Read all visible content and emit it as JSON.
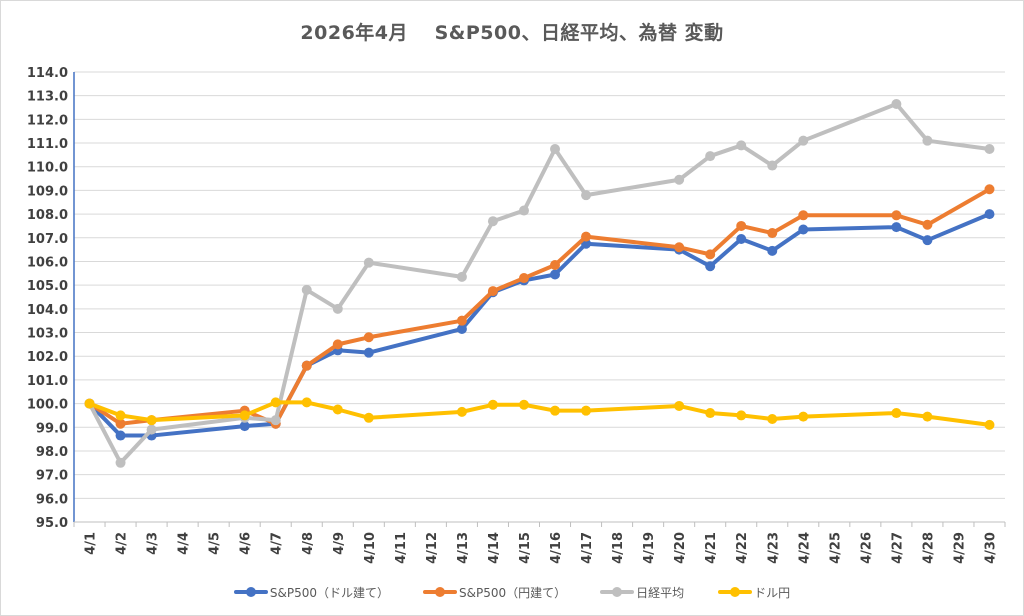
{
  "chart_data": {
    "type": "line",
    "title": "2026年4月　 S&P500、日経平均、為替 変動",
    "categories": [
      "4/1",
      "4/2",
      "4/3",
      "4/4",
      "4/5",
      "4/6",
      "4/7",
      "4/8",
      "4/9",
      "4/10",
      "4/11",
      "4/12",
      "4/13",
      "4/14",
      "4/15",
      "4/16",
      "4/17",
      "4/18",
      "4/19",
      "4/20",
      "4/21",
      "4/22",
      "4/23",
      "4/24",
      "4/25",
      "4/26",
      "4/27",
      "4/28",
      "4/29",
      "4/30"
    ],
    "ylim": [
      95.0,
      114.0
    ],
    "y_ticks": [
      "95.0",
      "96.0",
      "97.0",
      "98.0",
      "99.0",
      "100.0",
      "101.0",
      "102.0",
      "103.0",
      "104.0",
      "105.0",
      "106.0",
      "107.0",
      "108.0",
      "109.0",
      "110.0",
      "111.0",
      "112.0",
      "113.0",
      "114.0"
    ],
    "grid": "horizontal",
    "legend_position": "bottom",
    "series": [
      {
        "name": "S&P500（ドル建て）",
        "color": "#4472c4",
        "values": [
          100.0,
          98.65,
          98.65,
          null,
          null,
          99.05,
          99.15,
          101.6,
          102.25,
          102.15,
          null,
          null,
          103.15,
          104.7,
          105.2,
          105.45,
          106.75,
          null,
          null,
          106.5,
          105.8,
          106.95,
          106.45,
          107.35,
          null,
          null,
          107.45,
          106.9,
          null,
          108.0
        ]
      },
      {
        "name": "S&P500（円建て）",
        "color": "#ed7d31",
        "values": [
          100.0,
          99.15,
          99.3,
          null,
          null,
          99.7,
          99.15,
          101.6,
          102.5,
          102.8,
          null,
          null,
          103.5,
          104.75,
          105.3,
          105.85,
          107.05,
          null,
          null,
          106.6,
          106.3,
          107.5,
          107.2,
          107.95,
          null,
          null,
          107.95,
          107.55,
          null,
          109.05
        ]
      },
      {
        "name": "日経平均",
        "color": "#bfbfbf",
        "values": [
          100.0,
          97.5,
          98.9,
          null,
          null,
          99.4,
          99.3,
          104.8,
          104.0,
          105.95,
          null,
          null,
          105.35,
          107.7,
          108.15,
          110.75,
          108.8,
          null,
          null,
          109.45,
          110.45,
          110.9,
          110.05,
          111.1,
          null,
          null,
          112.65,
          111.1,
          null,
          110.75
        ]
      },
      {
        "name": "ドル円",
        "color": "#ffc000",
        "values": [
          100.0,
          99.5,
          99.3,
          null,
          null,
          99.5,
          100.05,
          100.05,
          99.75,
          99.4,
          null,
          null,
          99.65,
          99.95,
          99.95,
          99.7,
          99.7,
          null,
          null,
          99.9,
          99.6,
          99.5,
          99.35,
          99.45,
          null,
          null,
          99.6,
          99.45,
          null,
          99.1
        ]
      }
    ]
  }
}
